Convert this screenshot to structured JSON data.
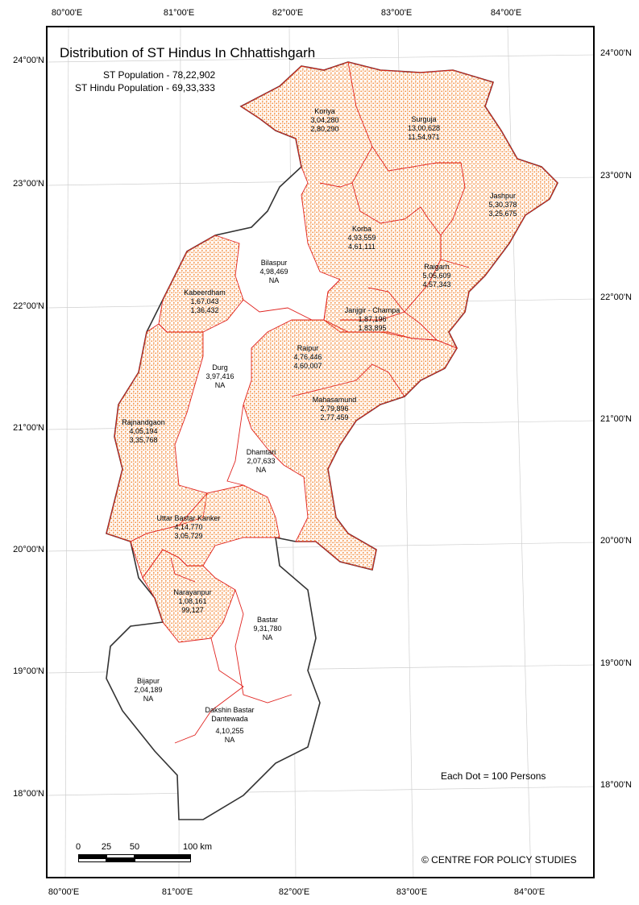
{
  "map": {
    "title": "Distribution of ST Hindus In Chhattishgarh",
    "st_population": "ST Population - 78,22,902",
    "st_hindu_population": "ST Hindu Population - 69,33,333",
    "legend_note": "Each Dot = 100 Persons",
    "credit": "© CENTRE FOR POLICY STUDIES",
    "dot_color": "#f4944a",
    "boundary_color": "#e0231f",
    "outline_color": "#333333",
    "scale_labels": [
      "0",
      "25",
      "50",
      "100 km"
    ],
    "lon_ticks": [
      "80°00'E",
      "81°00'E",
      "82°00'E",
      "83°00'E",
      "84°00'E"
    ],
    "lat_ticks": [
      "24°00'N",
      "23°00'N",
      "22°00'N",
      "21°00'N",
      "20°00'N",
      "19°00'N",
      "18°00'N"
    ]
  },
  "districts": [
    {
      "name": "Koriya",
      "total": "3,04,280",
      "hindu": "2,80,290"
    },
    {
      "name": "Surguja",
      "total": "13,00,628",
      "hindu": "11,54,971"
    },
    {
      "name": "Jashpur",
      "total": "5,30,378",
      "hindu": "3,25,675"
    },
    {
      "name": "Korba",
      "total": "4,93,559",
      "hindu": "4,61,111"
    },
    {
      "name": "Raigarh",
      "total": "5,05,609",
      "hindu": "4,57,343"
    },
    {
      "name": "Bilaspur",
      "total": "4,98,469",
      "hindu": "NA"
    },
    {
      "name": "Kabeerdham",
      "total": "1,67,043",
      "hindu": "1,36,432"
    },
    {
      "name": "Janjgir - Champa",
      "total": "1,87,196",
      "hindu": "1,83,895"
    },
    {
      "name": "Raipur",
      "total": "4,76,446",
      "hindu": "4,60,007"
    },
    {
      "name": "Durg",
      "total": "3,97,416",
      "hindu": "NA"
    },
    {
      "name": "Mahasamund",
      "total": "2,79,896",
      "hindu": "2,77,459"
    },
    {
      "name": "Rajnandgaon",
      "total": "4,05,194",
      "hindu": "3,35,768"
    },
    {
      "name": "Dhamtari",
      "total": "2,07,633",
      "hindu": "NA"
    },
    {
      "name": "Uttar Bastar Kanker",
      "total": "4,14,770",
      "hindu": "3,05,729"
    },
    {
      "name": "Narayanpur",
      "total": "1,08,161",
      "hindu": "99,127"
    },
    {
      "name": "Bastar",
      "total": "9,31,780",
      "hindu": "NA"
    },
    {
      "name": "Bijapur",
      "total": "2,04,189",
      "hindu": "NA"
    },
    {
      "name": "Dakshin Bastar Dantewada",
      "total": "4,10,255",
      "hindu": "NA"
    }
  ]
}
